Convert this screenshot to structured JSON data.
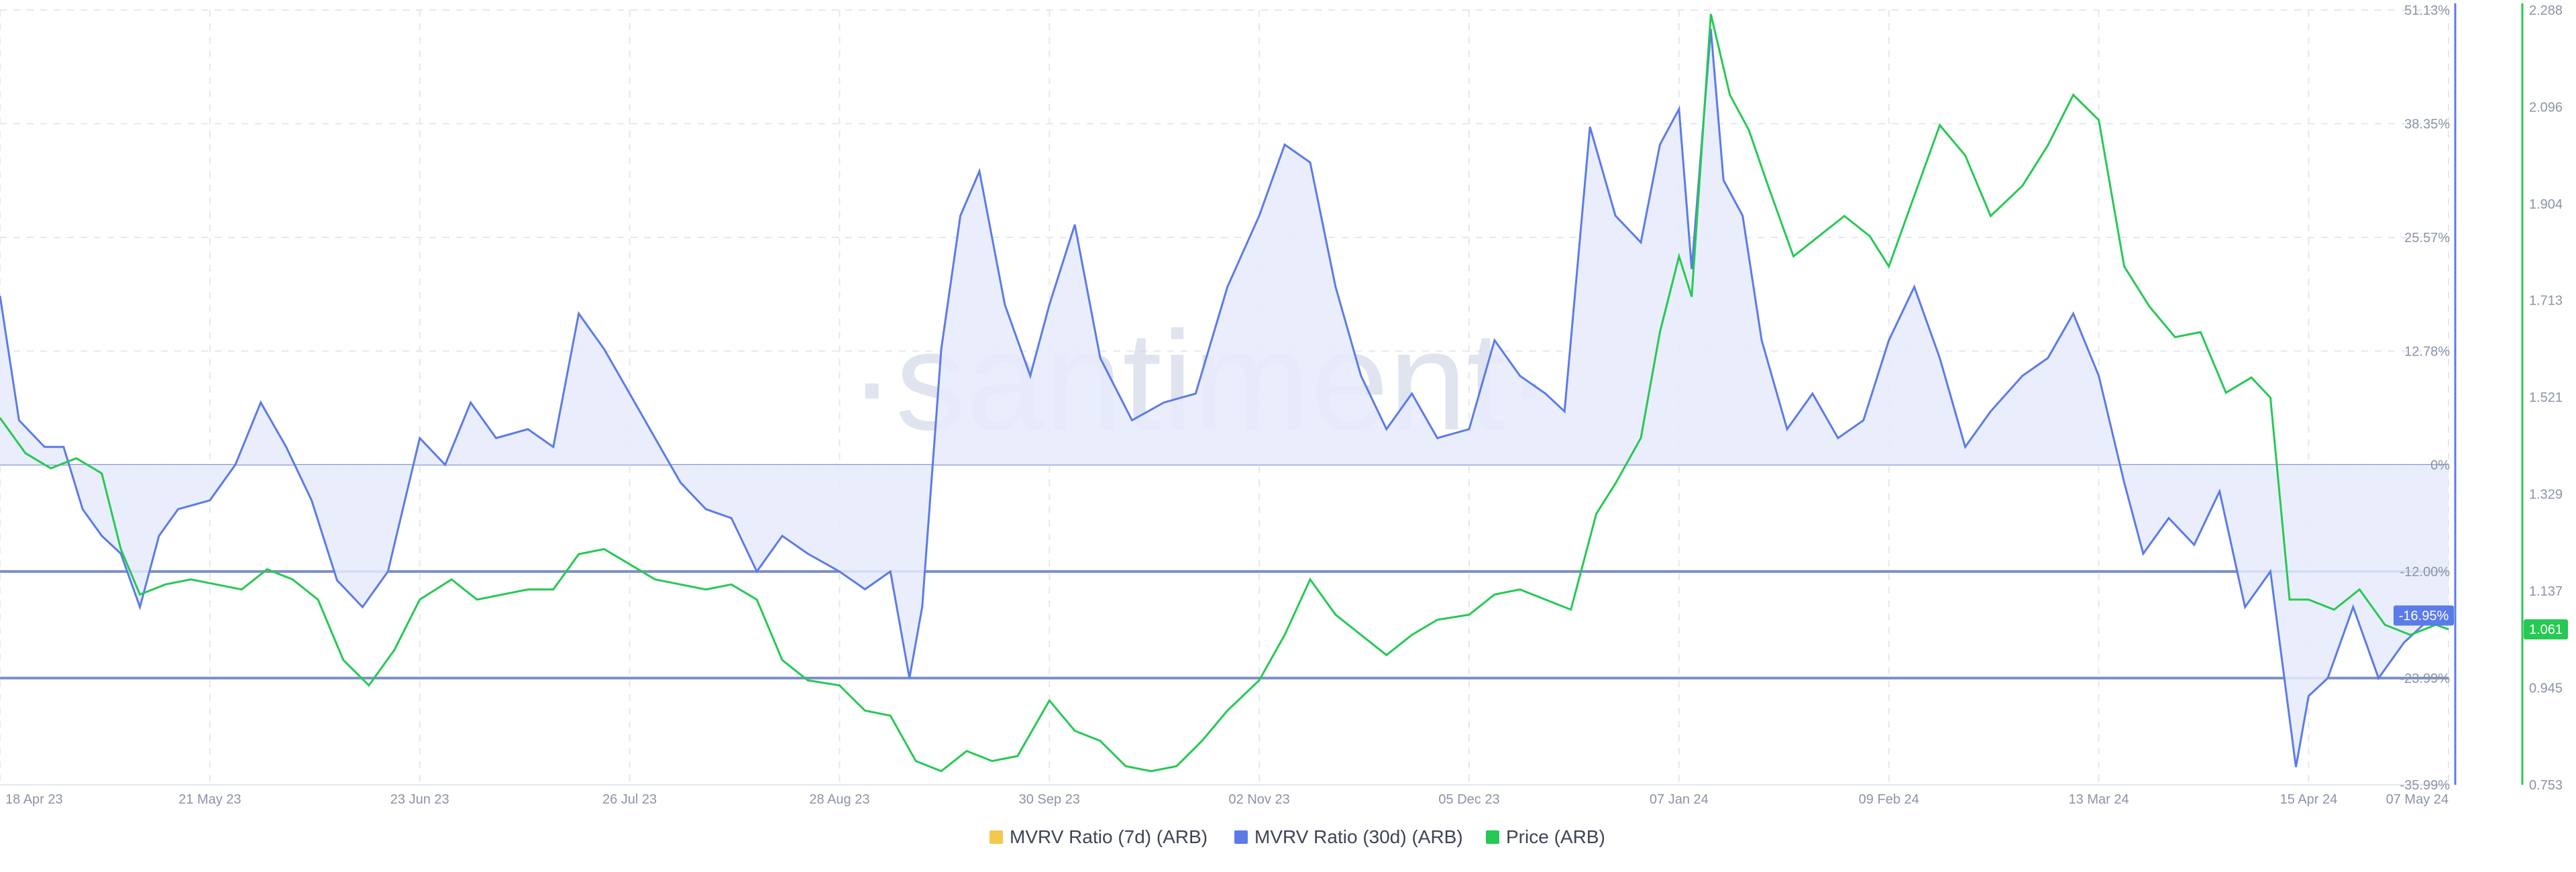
{
  "watermark": "·santiment·",
  "colors": {
    "mvrv7": "#f2c94c",
    "mvrv30": "#5b7be9",
    "mvrv30_fill": "#e6ebfb",
    "price": "#26c953",
    "ref_line": "#7f8fc6",
    "grid": "#e4e7ef",
    "axis_text": "#8b93a7"
  },
  "chart_data": {
    "type": "line",
    "title": "",
    "x_ticks": [
      "18 Apr 23",
      "21 May 23",
      "23 Jun 23",
      "26 Jul 23",
      "28 Aug 23",
      "30 Sep 23",
      "02 Nov 23",
      "05 Dec 23",
      "07 Jan 24",
      "09 Feb 24",
      "13 Mar 24",
      "15 Apr 24",
      "07 May 24"
    ],
    "x_range": [
      "2023-04-18",
      "2024-05-07"
    ],
    "y_left": {
      "label": "MVRV Ratio",
      "unit": "%",
      "range": [
        -35.99,
        51.13
      ],
      "ticks": [
        "51.13%",
        "38.35%",
        "25.57%",
        "12.78%",
        "0%",
        "-12.00%",
        "-23.99%",
        "-35.99%"
      ],
      "tick_values": [
        51.13,
        38.35,
        25.57,
        12.78,
        0,
        -12.0,
        -23.99,
        -35.99
      ],
      "reference_lines": [
        0,
        -12.0,
        -23.99
      ],
      "current_value_label": "-16.95%"
    },
    "y_right": {
      "label": "Price",
      "range": [
        0.753,
        2.288
      ],
      "ticks": [
        "2.288",
        "2.096",
        "1.904",
        "1.713",
        "1.521",
        "1.329",
        "1.137",
        "0.945",
        "0.753"
      ],
      "tick_values": [
        2.288,
        2.096,
        1.904,
        1.713,
        1.521,
        1.329,
        1.137,
        0.945,
        0.753
      ],
      "current_value_label": "1.061"
    },
    "grid": true,
    "legend_position": "bottom-center",
    "legend": [
      {
        "name": "MVRV Ratio (7d) (ARB)",
        "color": "#f2c94c"
      },
      {
        "name": "MVRV Ratio (30d) (ARB)",
        "color": "#5b7be9"
      },
      {
        "name": "Price (ARB)",
        "color": "#26c953"
      }
    ],
    "series": [
      {
        "name": "MVRV Ratio (30d) (ARB)",
        "axis": "left",
        "points": [
          [
            "2023-04-18",
            19.0
          ],
          [
            "2023-04-21",
            5.0
          ],
          [
            "2023-04-25",
            2.0
          ],
          [
            "2023-04-28",
            2.0
          ],
          [
            "2023-05-01",
            -5.0
          ],
          [
            "2023-05-04",
            -8.0
          ],
          [
            "2023-05-07",
            -10.0
          ],
          [
            "2023-05-10",
            -16.0
          ],
          [
            "2023-05-13",
            -8.0
          ],
          [
            "2023-05-16",
            -5.0
          ],
          [
            "2023-05-21",
            -4.0
          ],
          [
            "2023-05-25",
            0.0
          ],
          [
            "2023-05-29",
            7.0
          ],
          [
            "2023-06-02",
            2.0
          ],
          [
            "2023-06-06",
            -4.0
          ],
          [
            "2023-06-10",
            -13.0
          ],
          [
            "2023-06-14",
            -16.0
          ],
          [
            "2023-06-18",
            -12.0
          ],
          [
            "2023-06-23",
            3.0
          ],
          [
            "2023-06-27",
            0.0
          ],
          [
            "2023-07-01",
            7.0
          ],
          [
            "2023-07-05",
            3.0
          ],
          [
            "2023-07-10",
            4.0
          ],
          [
            "2023-07-14",
            2.0
          ],
          [
            "2023-07-18",
            17.0
          ],
          [
            "2023-07-22",
            13.0
          ],
          [
            "2023-07-26",
            8.0
          ],
          [
            "2023-07-30",
            3.0
          ],
          [
            "2023-08-03",
            -2.0
          ],
          [
            "2023-08-07",
            -5.0
          ],
          [
            "2023-08-11",
            -6.0
          ],
          [
            "2023-08-15",
            -12.0
          ],
          [
            "2023-08-19",
            -8.0
          ],
          [
            "2023-08-23",
            -10.0
          ],
          [
            "2023-08-28",
            -12.0
          ],
          [
            "2023-09-01",
            -14.0
          ],
          [
            "2023-09-05",
            -12.0
          ],
          [
            "2023-09-08",
            -24.0
          ],
          [
            "2023-09-10",
            -16.0
          ],
          [
            "2023-09-13",
            13.0
          ],
          [
            "2023-09-16",
            28.0
          ],
          [
            "2023-09-19",
            33.0
          ],
          [
            "2023-09-23",
            18.0
          ],
          [
            "2023-09-27",
            10.0
          ],
          [
            "2023-09-30",
            18.0
          ],
          [
            "2023-10-04",
            27.0
          ],
          [
            "2023-10-08",
            12.0
          ],
          [
            "2023-10-13",
            5.0
          ],
          [
            "2023-10-18",
            7.0
          ],
          [
            "2023-10-23",
            8.0
          ],
          [
            "2023-10-28",
            20.0
          ],
          [
            "2023-11-02",
            28.0
          ],
          [
            "2023-11-06",
            36.0
          ],
          [
            "2023-11-10",
            34.0
          ],
          [
            "2023-11-14",
            20.0
          ],
          [
            "2023-11-18",
            10.0
          ],
          [
            "2023-11-22",
            4.0
          ],
          [
            "2023-11-26",
            8.0
          ],
          [
            "2023-11-30",
            3.0
          ],
          [
            "2023-12-05",
            4.0
          ],
          [
            "2023-12-09",
            14.0
          ],
          [
            "2023-12-13",
            10.0
          ],
          [
            "2023-12-17",
            8.0
          ],
          [
            "2023-12-20",
            6.0
          ],
          [
            "2023-12-24",
            38.0
          ],
          [
            "2023-12-28",
            28.0
          ],
          [
            "2024-01-01",
            25.0
          ],
          [
            "2024-01-04",
            36.0
          ],
          [
            "2024-01-07",
            40.0
          ],
          [
            "2024-01-09",
            22.0
          ],
          [
            "2024-01-12",
            49.0
          ],
          [
            "2024-01-14",
            32.0
          ],
          [
            "2024-01-17",
            28.0
          ],
          [
            "2024-01-20",
            14.0
          ],
          [
            "2024-01-24",
            4.0
          ],
          [
            "2024-01-28",
            8.0
          ],
          [
            "2024-02-01",
            3.0
          ],
          [
            "2024-02-05",
            5.0
          ],
          [
            "2024-02-09",
            14.0
          ],
          [
            "2024-02-13",
            20.0
          ],
          [
            "2024-02-17",
            12.0
          ],
          [
            "2024-02-21",
            2.0
          ],
          [
            "2024-02-25",
            6.0
          ],
          [
            "2024-03-01",
            10.0
          ],
          [
            "2024-03-05",
            12.0
          ],
          [
            "2024-03-09",
            17.0
          ],
          [
            "2024-03-13",
            10.0
          ],
          [
            "2024-03-17",
            -2.0
          ],
          [
            "2024-03-20",
            -10.0
          ],
          [
            "2024-03-24",
            -6.0
          ],
          [
            "2024-03-28",
            -9.0
          ],
          [
            "2024-04-01",
            -3.0
          ],
          [
            "2024-04-05",
            -16.0
          ],
          [
            "2024-04-09",
            -12.0
          ],
          [
            "2024-04-13",
            -34.0
          ],
          [
            "2024-04-15",
            -26.0
          ],
          [
            "2024-04-18",
            -24.0
          ],
          [
            "2024-04-22",
            -16.0
          ],
          [
            "2024-04-26",
            -24.0
          ],
          [
            "2024-04-30",
            -20.0
          ],
          [
            "2024-05-03",
            -18.0
          ],
          [
            "2024-05-07",
            -16.95
          ]
        ]
      },
      {
        "name": "Price (ARB)",
        "axis": "right",
        "points": [
          [
            "2023-04-18",
            1.48
          ],
          [
            "2023-04-22",
            1.41
          ],
          [
            "2023-04-26",
            1.38
          ],
          [
            "2023-04-30",
            1.4
          ],
          [
            "2023-05-04",
            1.37
          ],
          [
            "2023-05-07",
            1.22
          ],
          [
            "2023-05-10",
            1.13
          ],
          [
            "2023-05-14",
            1.15
          ],
          [
            "2023-05-18",
            1.16
          ],
          [
            "2023-05-22",
            1.15
          ],
          [
            "2023-05-26",
            1.14
          ],
          [
            "2023-05-30",
            1.18
          ],
          [
            "2023-06-03",
            1.16
          ],
          [
            "2023-06-07",
            1.12
          ],
          [
            "2023-06-11",
            1.0
          ],
          [
            "2023-06-15",
            0.95
          ],
          [
            "2023-06-19",
            1.02
          ],
          [
            "2023-06-23",
            1.12
          ],
          [
            "2023-06-28",
            1.16
          ],
          [
            "2023-07-02",
            1.12
          ],
          [
            "2023-07-06",
            1.13
          ],
          [
            "2023-07-10",
            1.14
          ],
          [
            "2023-07-14",
            1.14
          ],
          [
            "2023-07-18",
            1.21
          ],
          [
            "2023-07-22",
            1.22
          ],
          [
            "2023-07-26",
            1.19
          ],
          [
            "2023-07-30",
            1.16
          ],
          [
            "2023-08-03",
            1.15
          ],
          [
            "2023-08-07",
            1.14
          ],
          [
            "2023-08-11",
            1.15
          ],
          [
            "2023-08-15",
            1.12
          ],
          [
            "2023-08-19",
            1.0
          ],
          [
            "2023-08-23",
            0.96
          ],
          [
            "2023-08-28",
            0.95
          ],
          [
            "2023-09-01",
            0.9
          ],
          [
            "2023-09-05",
            0.89
          ],
          [
            "2023-09-09",
            0.8
          ],
          [
            "2023-09-13",
            0.78
          ],
          [
            "2023-09-17",
            0.82
          ],
          [
            "2023-09-21",
            0.8
          ],
          [
            "2023-09-25",
            0.81
          ],
          [
            "2023-09-30",
            0.92
          ],
          [
            "2023-10-04",
            0.86
          ],
          [
            "2023-10-08",
            0.84
          ],
          [
            "2023-10-12",
            0.79
          ],
          [
            "2023-10-16",
            0.78
          ],
          [
            "2023-10-20",
            0.79
          ],
          [
            "2023-10-24",
            0.84
          ],
          [
            "2023-10-28",
            0.9
          ],
          [
            "2023-11-02",
            0.96
          ],
          [
            "2023-11-06",
            1.05
          ],
          [
            "2023-11-10",
            1.16
          ],
          [
            "2023-11-14",
            1.09
          ],
          [
            "2023-11-18",
            1.05
          ],
          [
            "2023-11-22",
            1.01
          ],
          [
            "2023-11-26",
            1.05
          ],
          [
            "2023-11-30",
            1.08
          ],
          [
            "2023-12-05",
            1.09
          ],
          [
            "2023-12-09",
            1.13
          ],
          [
            "2023-12-13",
            1.14
          ],
          [
            "2023-12-17",
            1.12
          ],
          [
            "2023-12-21",
            1.1
          ],
          [
            "2023-12-25",
            1.29
          ],
          [
            "2023-12-28",
            1.35
          ],
          [
            "2024-01-01",
            1.44
          ],
          [
            "2024-01-04",
            1.65
          ],
          [
            "2024-01-07",
            1.8
          ],
          [
            "2024-01-09",
            1.72
          ],
          [
            "2024-01-12",
            2.28
          ],
          [
            "2024-01-15",
            2.12
          ],
          [
            "2024-01-18",
            2.05
          ],
          [
            "2024-01-21",
            1.94
          ],
          [
            "2024-01-25",
            1.8
          ],
          [
            "2024-01-29",
            1.84
          ],
          [
            "2024-02-02",
            1.88
          ],
          [
            "2024-02-06",
            1.84
          ],
          [
            "2024-02-09",
            1.78
          ],
          [
            "2024-02-13",
            1.92
          ],
          [
            "2024-02-17",
            2.06
          ],
          [
            "2024-02-21",
            2.0
          ],
          [
            "2024-02-25",
            1.88
          ],
          [
            "2024-03-01",
            1.94
          ],
          [
            "2024-03-05",
            2.02
          ],
          [
            "2024-03-09",
            2.12
          ],
          [
            "2024-03-13",
            2.07
          ],
          [
            "2024-03-17",
            1.78
          ],
          [
            "2024-03-21",
            1.7
          ],
          [
            "2024-03-25",
            1.64
          ],
          [
            "2024-03-29",
            1.65
          ],
          [
            "2024-04-02",
            1.53
          ],
          [
            "2024-04-06",
            1.56
          ],
          [
            "2024-04-09",
            1.52
          ],
          [
            "2024-04-12",
            1.12
          ],
          [
            "2024-04-15",
            1.12
          ],
          [
            "2024-04-19",
            1.1
          ],
          [
            "2024-04-23",
            1.14
          ],
          [
            "2024-04-27",
            1.07
          ],
          [
            "2024-05-01",
            1.05
          ],
          [
            "2024-05-05",
            1.07
          ],
          [
            "2024-05-07",
            1.061
          ]
        ]
      },
      {
        "name": "MVRV Ratio (7d) (ARB)",
        "axis": "left",
        "points": []
      }
    ]
  }
}
